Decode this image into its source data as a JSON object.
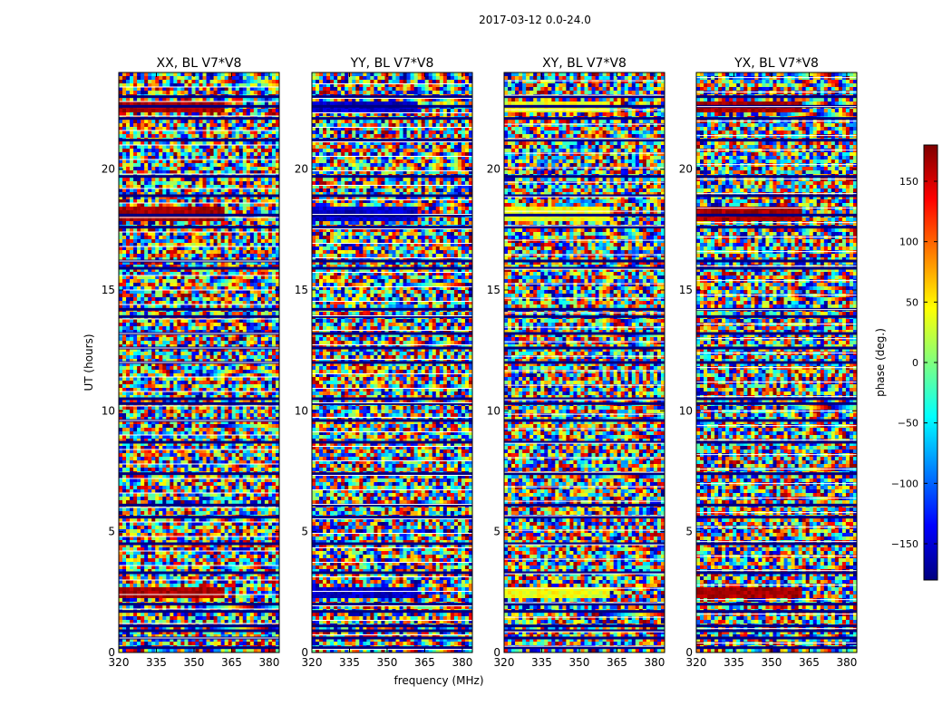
{
  "chart_data": {
    "type": "heatmap",
    "suptitle": "2017-03-12 0.0-24.0",
    "xlabel": "frequency (MHz)",
    "ylabel": "UT (hours)",
    "xlim": [
      320,
      384
    ],
    "ylim": [
      0,
      24
    ],
    "xticks": [
      320,
      335,
      350,
      365,
      380
    ],
    "yticks": [
      0,
      5,
      10,
      15,
      20
    ],
    "colorbar": {
      "label": "phase (deg.)",
      "range": [
        -180,
        180
      ],
      "ticks": [
        150,
        100,
        50,
        0,
        -50,
        -100,
        -150
      ],
      "colormap": "jet"
    },
    "panels": [
      {
        "id": "xx",
        "title": "XX, BL V7*V8",
        "seed": 11,
        "bias": 1
      },
      {
        "id": "yy",
        "title": "YY, BL V7*V8",
        "seed": 23,
        "bias": -1
      },
      {
        "id": "xy",
        "title": "XY, BL V7*V8",
        "seed": 37,
        "bias": 0.3
      },
      {
        "id": "yx",
        "title": "YX, BL V7*V8",
        "seed": 53,
        "bias": 0.7
      }
    ],
    "flagged_phase_bands": [
      {
        "ut_start": 22.3,
        "ut_end": 22.8,
        "freq_end": 362
      },
      {
        "ut_start": 17.8,
        "ut_end": 18.5,
        "freq_end": 362
      },
      {
        "ut_start": 2.2,
        "ut_end": 2.7,
        "freq_end": 362
      }
    ],
    "gap_bands_ut": [
      0.2,
      0.6,
      0.9,
      1.1,
      1.7,
      2.0,
      3.3,
      4.5,
      5.6,
      6.1,
      7.4,
      8.7,
      9.6,
      10.3,
      10.5,
      12.0,
      12.6,
      13.2,
      13.9,
      14.2,
      15.9,
      16.2,
      17.6,
      18.1,
      18.9,
      19.7,
      21.2,
      22.1,
      22.6,
      23.0
    ]
  }
}
